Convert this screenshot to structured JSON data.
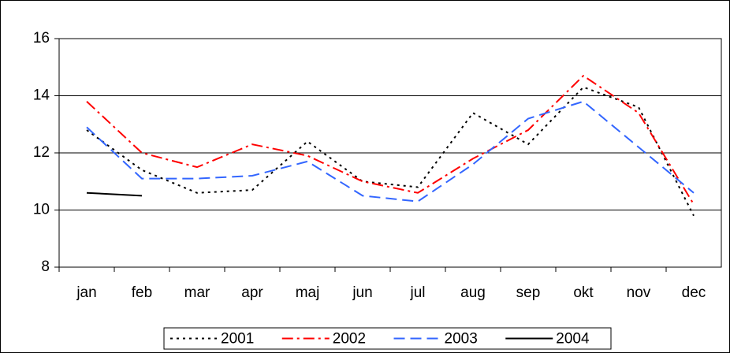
{
  "chart_data": {
    "type": "line",
    "categories": [
      "jan",
      "feb",
      "mar",
      "apr",
      "maj",
      "jun",
      "jul",
      "aug",
      "sep",
      "okt",
      "nov",
      "dec"
    ],
    "series": [
      {
        "name": "2001",
        "color": "#000000",
        "line_style": "dotted",
        "values": [
          12.8,
          11.4,
          10.6,
          10.7,
          12.4,
          11.0,
          10.8,
          13.4,
          12.3,
          14.3,
          13.6,
          9.8
        ]
      },
      {
        "name": "2002",
        "color": "#ff0000",
        "line_style": "dashdot",
        "values": [
          13.8,
          12.0,
          11.5,
          12.3,
          11.9,
          11.0,
          10.6,
          11.8,
          12.8,
          14.7,
          13.4,
          10.2
        ]
      },
      {
        "name": "2003",
        "color": "#3366ff",
        "line_style": "dashed",
        "values": [
          12.9,
          11.1,
          11.1,
          11.2,
          11.7,
          10.5,
          10.3,
          11.6,
          13.2,
          13.8,
          12.2,
          10.6
        ]
      },
      {
        "name": "2004",
        "color": "#000000",
        "line_style": "solid",
        "values": [
          10.6,
          10.5,
          null,
          null,
          null,
          null,
          null,
          null,
          null,
          null,
          null,
          null
        ]
      }
    ],
    "ylim": [
      8,
      16
    ],
    "yticks": [
      8,
      10,
      12,
      14,
      16
    ],
    "grid": true,
    "legend": "bottom"
  }
}
